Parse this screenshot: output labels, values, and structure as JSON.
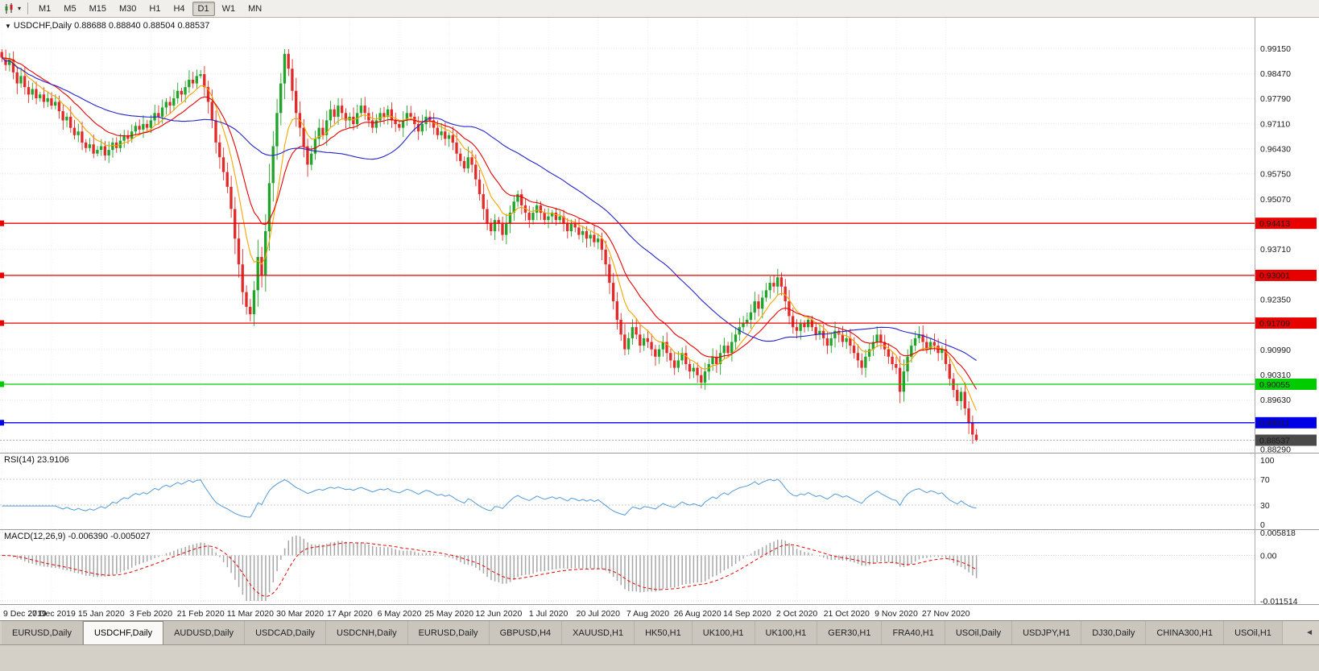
{
  "toolbar": {
    "timeframes": [
      "M1",
      "M5",
      "M15",
      "M30",
      "H1",
      "H4",
      "D1",
      "W1",
      "MN"
    ],
    "active_timeframe": "D1"
  },
  "icons": {
    "symbol_dropdown": "▼",
    "toolbar_dropdown": "▾",
    "tabs_scroll_left": "◄"
  },
  "main_chart": {
    "title_text": "USDCHF,Daily 0.88688 0.88840 0.88504 0.88537"
  },
  "chart_data": {
    "type": "candlestick",
    "symbol": "USDCHF",
    "timeframe": "Daily",
    "last_ohlc": {
      "open": 0.88688,
      "high": 0.8884,
      "low": 0.88504,
      "close": 0.88537
    },
    "colors": {
      "up": "#22a32a",
      "down": "#e12b2b"
    },
    "closes": [
      0.989,
      0.987,
      0.9885,
      0.985,
      0.982,
      0.984,
      0.981,
      0.979,
      0.9805,
      0.978,
      0.979,
      0.977,
      0.978,
      0.976,
      0.977,
      0.9745,
      0.972,
      0.973,
      0.97,
      0.968,
      0.969,
      0.966,
      0.9645,
      0.9655,
      0.963,
      0.964,
      0.965,
      0.9625,
      0.964,
      0.966,
      0.9645,
      0.9665,
      0.968,
      0.967,
      0.969,
      0.9705,
      0.9695,
      0.971,
      0.97,
      0.972,
      0.974,
      0.973,
      0.9755,
      0.977,
      0.976,
      0.978,
      0.98,
      0.979,
      0.981,
      0.983,
      0.982,
      0.984,
      0.9845,
      0.981,
      0.977,
      0.972,
      0.966,
      0.962,
      0.958,
      0.954,
      0.948,
      0.94,
      0.933,
      0.9255,
      0.9215,
      0.9195,
      0.926,
      0.935,
      0.93,
      0.942,
      0.955,
      0.965,
      0.974,
      0.982,
      0.99,
      0.986,
      0.98,
      0.974,
      0.97,
      0.965,
      0.96,
      0.963,
      0.967,
      0.97,
      0.968,
      0.972,
      0.975,
      0.973,
      0.976,
      0.974,
      0.972,
      0.973,
      0.971,
      0.974,
      0.976,
      0.974,
      0.972,
      0.97,
      0.972,
      0.974,
      0.973,
      0.975,
      0.972,
      0.971,
      0.97,
      0.972,
      0.974,
      0.973,
      0.971,
      0.969,
      0.971,
      0.973,
      0.972,
      0.97,
      0.968,
      0.969,
      0.967,
      0.968,
      0.966,
      0.963,
      0.961,
      0.959,
      0.962,
      0.96,
      0.956,
      0.952,
      0.948,
      0.944,
      0.942,
      0.945,
      0.944,
      0.941,
      0.944,
      0.947,
      0.95,
      0.952,
      0.949,
      0.947,
      0.945,
      0.947,
      0.949,
      0.947,
      0.945,
      0.946,
      0.947,
      0.945,
      0.946,
      0.944,
      0.942,
      0.944,
      0.943,
      0.941,
      0.942,
      0.94,
      0.941,
      0.939,
      0.94,
      0.937,
      0.933,
      0.928,
      0.923,
      0.918,
      0.914,
      0.91,
      0.913,
      0.916,
      0.914,
      0.911,
      0.913,
      0.912,
      0.91,
      0.908,
      0.91,
      0.912,
      0.909,
      0.907,
      0.905,
      0.907,
      0.909,
      0.906,
      0.904,
      0.905,
      0.903,
      0.901,
      0.904,
      0.906,
      0.908,
      0.906,
      0.909,
      0.911,
      0.909,
      0.912,
      0.914,
      0.916,
      0.917,
      0.918,
      0.92,
      0.923,
      0.921,
      0.924,
      0.926,
      0.928,
      0.927,
      0.9295,
      0.927,
      0.923,
      0.919,
      0.916,
      0.915,
      0.917,
      0.916,
      0.918,
      0.916,
      0.914,
      0.915,
      0.913,
      0.911,
      0.913,
      0.915,
      0.914,
      0.912,
      0.913,
      0.911,
      0.909,
      0.907,
      0.905,
      0.908,
      0.91,
      0.912,
      0.914,
      0.912,
      0.91,
      0.908,
      0.906,
      0.905,
      0.8985,
      0.904,
      0.908,
      0.911,
      0.913,
      0.914,
      0.912,
      0.91,
      0.912,
      0.911,
      0.909,
      0.91,
      0.906,
      0.902,
      0.899,
      0.896,
      0.8985,
      0.894,
      0.89,
      0.8869,
      0.88537
    ],
    "x_labels": [
      "9 Dec 2019",
      "27 Dec 2019",
      "15 Jan 2020",
      "3 Feb 2020",
      "21 Feb 2020",
      "11 Mar 2020",
      "30 Mar 2020",
      "17 Apr 2020",
      "6 May 2020",
      "25 May 2020",
      "12 Jun 2020",
      "1 Jul 2020",
      "20 Jul 2020",
      "7 Aug 2020",
      "26 Aug 2020",
      "14 Sep 2020",
      "2 Oct 2020",
      "21 Oct 2020",
      "9 Nov 2020",
      "27 Nov 2020"
    ],
    "label_step": 13,
    "price_axis": {
      "ticks": [
        "0.99150",
        "0.98470",
        "0.97790",
        "0.97110",
        "0.96430",
        "0.95750",
        "0.95070",
        "0.93710",
        "0.92350",
        "0.90990",
        "0.90310",
        "0.89630",
        "0.88290"
      ]
    },
    "hlines": [
      {
        "label": "0.94413",
        "value": 0.94413,
        "color": "#e60000"
      },
      {
        "label": "0.93001",
        "value": 0.93001,
        "color": "#e60000"
      },
      {
        "label": "0.91709",
        "value": 0.91709,
        "color": "#e60000"
      },
      {
        "label": "0.90055",
        "value": 0.90055,
        "color": "#00cc00"
      },
      {
        "label": "0.89011",
        "value": 0.89011,
        "color": "#0000e6"
      }
    ],
    "current_price": {
      "label": "0.88537",
      "value": 0.88537,
      "badge_color": "#4a4a4a",
      "line_color": "#9a9a9a"
    },
    "moving_averages": [
      {
        "period": 8,
        "method": "ema",
        "color": "#f7a400"
      },
      {
        "period": 17,
        "method": "ema",
        "color": "#e60000"
      },
      {
        "period": 42,
        "method": "sma",
        "color": "#2323cc"
      }
    ],
    "rsi": {
      "label": "RSI(14)",
      "value": "23.9106",
      "period": 14,
      "upper": 70,
      "lower": 30,
      "scale": [
        100,
        70,
        30,
        0
      ],
      "color": "#5599d6"
    },
    "macd": {
      "label": "MACD(12,26,9)",
      "value": "-0.006390 -0.005027",
      "fast": 12,
      "slow": 26,
      "signal": 9,
      "axis_labels": [
        "0.005818",
        "0.00",
        "-0.011514"
      ],
      "axis_max": 0.005818,
      "axis_min": -0.011514,
      "hist_color": "#a6a6a6",
      "signal_color": "#e60000"
    }
  },
  "tabs": {
    "active_index": 1,
    "items": [
      "EURUSD,Daily",
      "USDCHF,Daily",
      "AUDUSD,Daily",
      "USDCAD,Daily",
      "USDCNH,Daily",
      "EURUSD,Daily",
      "GBPUSD,H4",
      "XAUUSD,H1",
      "HK50,H1",
      "UK100,H1",
      "UK100,H1",
      "GER30,H1",
      "FRA40,H1",
      "USOil,Daily",
      "USDJPY,H1",
      "DJ30,Daily",
      "CHINA300,H1",
      "USOil,H1"
    ]
  }
}
